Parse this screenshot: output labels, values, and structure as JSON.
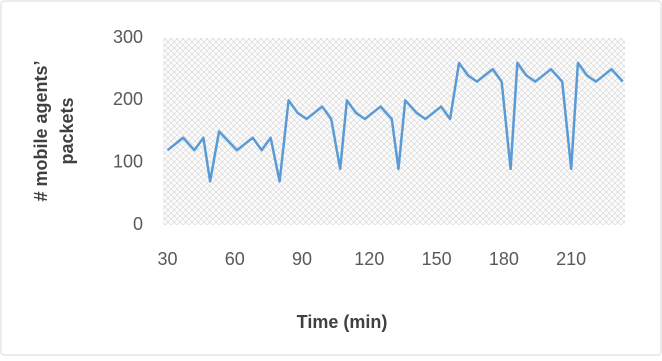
{
  "chart_data": {
    "type": "line",
    "x_label": "Time (min)",
    "y_label_lines": [
      "# mobile agents’",
      "packets"
    ],
    "x": [
      30,
      37,
      42,
      46,
      49,
      53,
      61,
      68,
      72,
      76,
      80,
      84,
      88,
      92,
      99,
      103,
      107,
      110,
      114,
      118,
      125,
      130,
      133,
      136,
      141,
      145,
      152,
      156,
      160,
      164,
      168,
      175,
      179,
      183,
      186,
      190,
      194,
      201,
      206,
      210,
      213,
      217,
      221,
      228,
      233
    ],
    "series": [
      {
        "color": "#5b9bd5",
        "values": [
          120,
          140,
          120,
          140,
          70,
          150,
          120,
          140,
          120,
          140,
          70,
          200,
          180,
          170,
          190,
          170,
          90,
          200,
          180,
          170,
          190,
          170,
          90,
          200,
          180,
          170,
          190,
          170,
          260,
          240,
          230,
          250,
          230,
          90,
          260,
          240,
          230,
          250,
          230,
          90,
          260,
          240,
          230,
          250,
          230
        ]
      }
    ],
    "xlim": [
      28,
      234
    ],
    "xticks": [
      30,
      60,
      90,
      120,
      150,
      180,
      210
    ],
    "ylim": [
      0,
      300
    ],
    "yticks": [
      0,
      100,
      200,
      300
    ]
  }
}
